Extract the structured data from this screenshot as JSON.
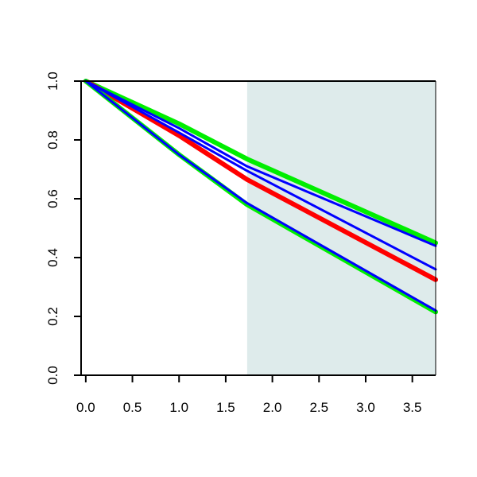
{
  "chart_data": {
    "type": "line",
    "title": "",
    "xlabel": "",
    "ylabel": "",
    "xlim": [
      -0.05,
      3.75
    ],
    "ylim": [
      0.0,
      1.0
    ],
    "x_ticks": [
      0.0,
      0.5,
      1.0,
      1.5,
      2.0,
      2.5,
      3.0,
      3.5
    ],
    "x_tick_labels": [
      "0.0",
      "0.5",
      "1.0",
      "1.5",
      "2.0",
      "2.5",
      "3.0",
      "3.5"
    ],
    "y_ticks": [
      0.0,
      0.2,
      0.4,
      0.6,
      0.8,
      1.0
    ],
    "y_tick_labels": [
      "0.0",
      "0.2",
      "0.4",
      "0.6",
      "0.8",
      "1.0"
    ],
    "grid": false,
    "shaded_region": {
      "x": [
        1.73,
        3.75
      ],
      "color": "#deebeb"
    },
    "series": [
      {
        "color": "#00ee00",
        "x": [
          0.0,
          1.0,
          1.73,
          3.75
        ],
        "values": [
          1.0,
          0.855,
          0.735,
          0.45
        ]
      },
      {
        "color": "#0000ff",
        "x": [
          0.0,
          1.0,
          1.73,
          3.75
        ],
        "values": [
          1.0,
          0.84,
          0.71,
          0.44
        ]
      },
      {
        "color": "#0000ff",
        "x": [
          0.0,
          1.0,
          1.73,
          3.75
        ],
        "values": [
          1.0,
          0.825,
          0.695,
          0.36
        ]
      },
      {
        "color": "#ff0000",
        "x": [
          0.0,
          1.0,
          1.73,
          3.75
        ],
        "values": [
          1.0,
          0.815,
          0.665,
          0.325
        ]
      },
      {
        "color": "#0000ff",
        "x": [
          0.0,
          1.0,
          1.73,
          3.75
        ],
        "values": [
          1.0,
          0.75,
          0.585,
          0.22
        ]
      },
      {
        "color": "#00ee00",
        "x": [
          0.0,
          1.0,
          1.73,
          3.75
        ],
        "values": [
          1.0,
          0.75,
          0.58,
          0.215
        ]
      }
    ]
  }
}
